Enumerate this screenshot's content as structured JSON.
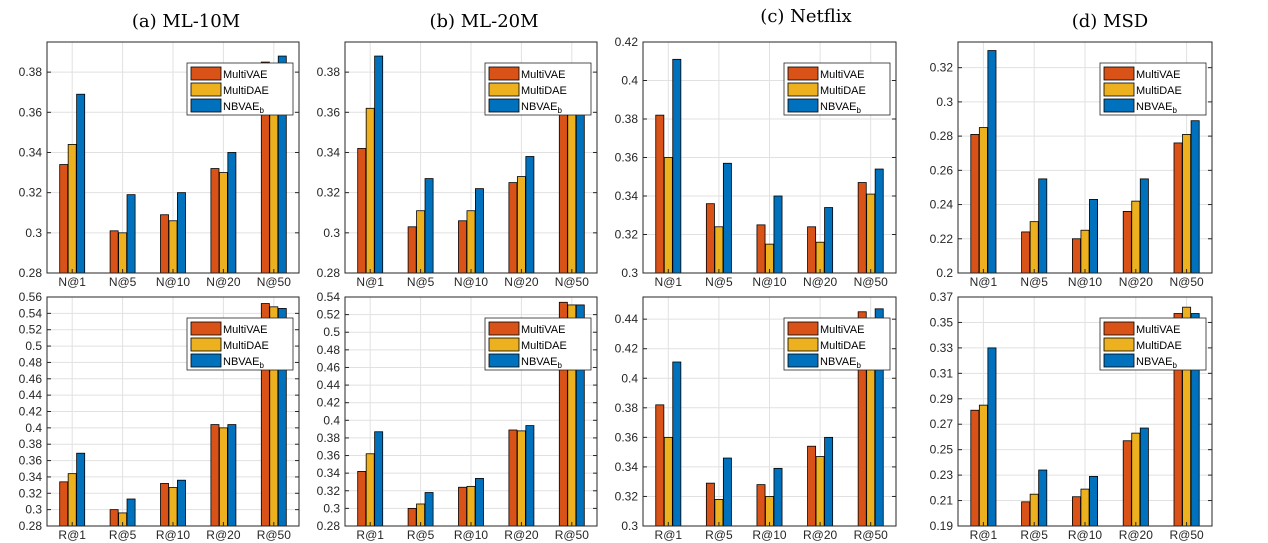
{
  "figure_titles": [
    "(a) ML-10M",
    "(b) ML-20M",
    "(c) Netflix",
    "(d) MSD"
  ],
  "colors": {
    "MultiVAE": "#d95319",
    "MultiDAE": "#edb120",
    "NBVAE": "#0072bd",
    "grid": "#e1e1e1",
    "axis": "#262626"
  },
  "chart_data": [
    {
      "type": "bar",
      "dataset": "ML-10M",
      "metric": "NDCG",
      "categories": [
        "N@1",
        "N@5",
        "N@10",
        "N@20",
        "N@50"
      ],
      "ylim": [
        0.28,
        0.395
      ],
      "yticks": [
        "0.28",
        "0.3",
        "0.32",
        "0.34",
        "0.36",
        "0.38"
      ],
      "legend_position": "top-right",
      "grid": true,
      "series": [
        {
          "name": "MultiVAE",
          "values": [
            0.334,
            0.301,
            0.309,
            0.332,
            0.385
          ]
        },
        {
          "name": "MultiDAE",
          "values": [
            0.344,
            0.3,
            0.306,
            0.33,
            0.383
          ]
        },
        {
          "name": "NBVAE",
          "name_sub": "b",
          "values": [
            0.369,
            0.319,
            0.32,
            0.34,
            0.388
          ]
        }
      ]
    },
    {
      "type": "bar",
      "dataset": "ML-20M",
      "metric": "NDCG",
      "categories": [
        "N@1",
        "N@5",
        "N@10",
        "N@20",
        "N@50"
      ],
      "ylim": [
        0.28,
        0.395
      ],
      "yticks": [
        "0.28",
        "0.3",
        "0.32",
        "0.34",
        "0.36",
        "0.38"
      ],
      "legend_position": "top-right",
      "grid": true,
      "series": [
        {
          "name": "MultiVAE",
          "values": [
            0.342,
            0.303,
            0.306,
            0.325,
            0.376
          ]
        },
        {
          "name": "MultiDAE",
          "values": [
            0.362,
            0.311,
            0.311,
            0.328,
            0.378
          ]
        },
        {
          "name": "NBVAE",
          "name_sub": "b",
          "values": [
            0.388,
            0.327,
            0.322,
            0.338,
            0.384
          ]
        }
      ]
    },
    {
      "type": "bar",
      "dataset": "Netflix",
      "metric": "NDCG",
      "categories": [
        "N@1",
        "N@5",
        "N@10",
        "N@20",
        "N@50"
      ],
      "ylim": [
        0.3,
        0.42
      ],
      "yticks": [
        "0.3",
        "0.32",
        "0.34",
        "0.36",
        "0.38",
        "0.4",
        "0.42"
      ],
      "legend_position": "top-right",
      "grid": true,
      "series": [
        {
          "name": "MultiVAE",
          "values": [
            0.382,
            0.336,
            0.325,
            0.324,
            0.347
          ]
        },
        {
          "name": "MultiDAE",
          "values": [
            0.36,
            0.324,
            0.315,
            0.316,
            0.341
          ]
        },
        {
          "name": "NBVAE",
          "name_sub": "b",
          "values": [
            0.411,
            0.357,
            0.34,
            0.334,
            0.354
          ]
        }
      ]
    },
    {
      "type": "bar",
      "dataset": "MSD",
      "metric": "NDCG",
      "categories": [
        "N@1",
        "N@5",
        "N@10",
        "N@20",
        "N@50"
      ],
      "ylim": [
        0.2,
        0.335
      ],
      "yticks": [
        "0.2",
        "0.22",
        "0.24",
        "0.26",
        "0.28",
        "0.3",
        "0.32"
      ],
      "legend_position": "top-right",
      "grid": true,
      "series": [
        {
          "name": "MultiVAE",
          "values": [
            0.281,
            0.224,
            0.22,
            0.236,
            0.276
          ]
        },
        {
          "name": "MultiDAE",
          "values": [
            0.285,
            0.23,
            0.225,
            0.242,
            0.281
          ]
        },
        {
          "name": "NBVAE",
          "name_sub": "b",
          "values": [
            0.33,
            0.255,
            0.243,
            0.255,
            0.289
          ]
        }
      ]
    },
    {
      "type": "bar",
      "dataset": "ML-10M",
      "metric": "Recall",
      "categories": [
        "R@1",
        "R@5",
        "R@10",
        "R@20",
        "R@50"
      ],
      "ylim": [
        0.28,
        0.56
      ],
      "yticks": [
        "0.28",
        "0.3",
        "0.32",
        "0.34",
        "0.36",
        "0.38",
        "0.4",
        "0.42",
        "0.44",
        "0.46",
        "0.48",
        "0.5",
        "0.52",
        "0.54",
        "0.56"
      ],
      "legend_position": "top-right",
      "grid": true,
      "series": [
        {
          "name": "MultiVAE",
          "values": [
            0.334,
            0.3,
            0.332,
            0.404,
            0.552
          ]
        },
        {
          "name": "MultiDAE",
          "values": [
            0.344,
            0.296,
            0.327,
            0.4,
            0.548
          ]
        },
        {
          "name": "NBVAE",
          "name_sub": "b",
          "values": [
            0.369,
            0.313,
            0.336,
            0.404,
            0.546
          ]
        }
      ]
    },
    {
      "type": "bar",
      "dataset": "ML-20M",
      "metric": "Recall",
      "categories": [
        "R@1",
        "R@5",
        "R@10",
        "R@20",
        "R@50"
      ],
      "ylim": [
        0.28,
        0.54
      ],
      "yticks": [
        "0.28",
        "0.3",
        "0.32",
        "0.34",
        "0.36",
        "0.38",
        "0.4",
        "0.42",
        "0.44",
        "0.46",
        "0.48",
        "0.5",
        "0.52",
        "0.54"
      ],
      "legend_position": "top-right",
      "grid": true,
      "series": [
        {
          "name": "MultiVAE",
          "values": [
            0.342,
            0.3,
            0.324,
            0.389,
            0.534
          ]
        },
        {
          "name": "MultiDAE",
          "values": [
            0.362,
            0.305,
            0.325,
            0.388,
            0.531
          ]
        },
        {
          "name": "NBVAE",
          "name_sub": "b",
          "values": [
            0.387,
            0.318,
            0.334,
            0.394,
            0.531
          ]
        }
      ]
    },
    {
      "type": "bar",
      "dataset": "Netflix",
      "metric": "Recall",
      "categories": [
        "R@1",
        "R@5",
        "R@10",
        "R@20",
        "R@50"
      ],
      "ylim": [
        0.3,
        0.455
      ],
      "yticks": [
        "0.3",
        "0.32",
        "0.34",
        "0.36",
        "0.38",
        "0.4",
        "0.42",
        "0.44"
      ],
      "legend_position": "top-right",
      "grid": true,
      "series": [
        {
          "name": "MultiVAE",
          "values": [
            0.382,
            0.329,
            0.328,
            0.354,
            0.445
          ]
        },
        {
          "name": "MultiDAE",
          "values": [
            0.36,
            0.318,
            0.32,
            0.347,
            0.44
          ]
        },
        {
          "name": "NBVAE",
          "name_sub": "b",
          "values": [
            0.411,
            0.346,
            0.339,
            0.36,
            0.447
          ]
        }
      ]
    },
    {
      "type": "bar",
      "dataset": "MSD",
      "metric": "Recall",
      "categories": [
        "R@1",
        "R@5",
        "R@10",
        "R@20",
        "R@50"
      ],
      "ylim": [
        0.19,
        0.37
      ],
      "yticks": [
        "0.19",
        "0.21",
        "0.23",
        "0.25",
        "0.27",
        "0.29",
        "0.31",
        "0.33",
        "0.35",
        "0.37"
      ],
      "legend_position": "top-right",
      "grid": true,
      "series": [
        {
          "name": "MultiVAE",
          "values": [
            0.281,
            0.209,
            0.213,
            0.257,
            0.357
          ]
        },
        {
          "name": "MultiDAE",
          "values": [
            0.285,
            0.215,
            0.219,
            0.263,
            0.362
          ]
        },
        {
          "name": "NBVAE",
          "name_sub": "b",
          "values": [
            0.33,
            0.234,
            0.229,
            0.267,
            0.357
          ]
        }
      ]
    }
  ]
}
